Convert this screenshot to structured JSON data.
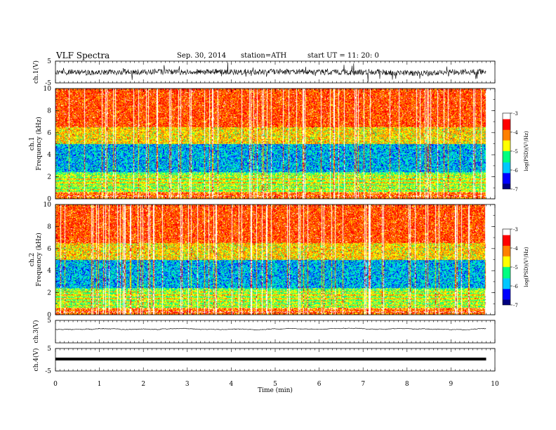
{
  "header": {
    "title": "VLF  Spectra",
    "date": "Sep. 30, 2014",
    "station": "station=ATH",
    "start": "start  UT  =    11: 20: 0"
  },
  "chart_data": [
    {
      "type": "line",
      "name": "ch1-waveform",
      "ylabel": "ch.1(V)",
      "ylim": [
        -5,
        5
      ],
      "yticks": [
        "5",
        "-5"
      ],
      "x_range_min": [
        0,
        9.8
      ]
    },
    {
      "type": "heatmap",
      "name": "ch1-spectrogram",
      "ylabel": "ch.1",
      "ylabel2": "Frequency  (kHz)",
      "ylim": [
        0,
        10
      ],
      "yticks": [
        "0",
        "2",
        "4",
        "6",
        "8",
        "10"
      ],
      "colorbar": {
        "label": "log(PSD)(V²/Hz)",
        "range": [
          -7,
          -3
        ],
        "ticks": [
          "-3",
          "-4",
          "-5",
          "-6",
          "-7"
        ]
      }
    },
    {
      "type": "heatmap",
      "name": "ch2-spectrogram",
      "ylabel": "ch.2",
      "ylabel2": "Frequency  (kHz)",
      "ylim": [
        0,
        10
      ],
      "yticks": [
        "0",
        "2",
        "4",
        "6",
        "8",
        "10"
      ],
      "colorbar": {
        "label": "log(PSD)(V²/Hz)",
        "range": [
          -7,
          -3
        ],
        "ticks": [
          "-3",
          "-4",
          "-5",
          "-6",
          "-7"
        ]
      }
    },
    {
      "type": "line",
      "name": "ch3-waveform",
      "ylabel": "ch.3(V)",
      "ylim": [
        -5,
        5
      ],
      "yticks": [
        "5"
      ]
    },
    {
      "type": "line",
      "name": "ch4-waveform",
      "ylabel": "ch.4(V)",
      "ylim": [
        -5,
        5
      ],
      "yticks": [
        "5",
        "-5"
      ]
    }
  ],
  "xaxis": {
    "label": "Time  (min)",
    "range": [
      0,
      10
    ],
    "ticks": [
      "0",
      "1",
      "2",
      "3",
      "4",
      "5",
      "6",
      "7",
      "8",
      "9",
      "10"
    ]
  },
  "colors": {
    "jet": [
      "#000080",
      "#0000ff",
      "#00c8ff",
      "#00ff80",
      "#ffff00",
      "#ff8000",
      "#ff0000",
      "#ffffff"
    ]
  }
}
